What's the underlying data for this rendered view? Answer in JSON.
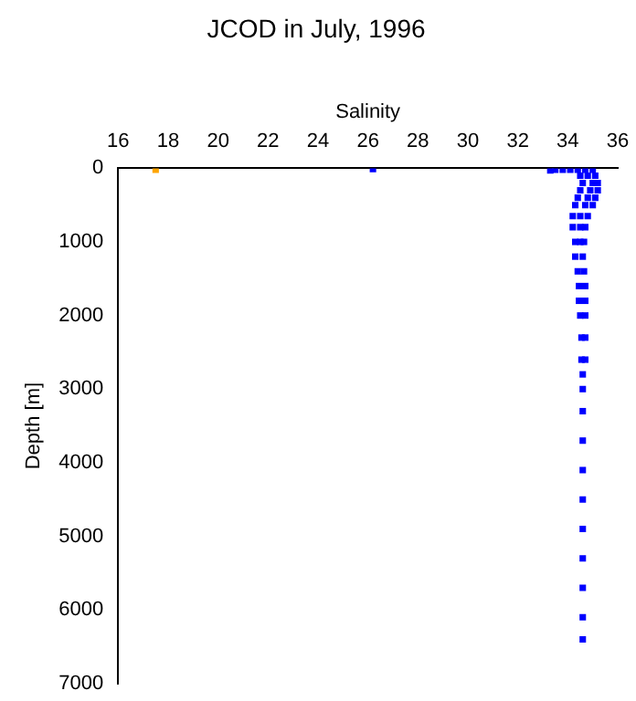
{
  "chart_data": {
    "type": "scatter",
    "title": "JCOD in July, 1996",
    "xlabel": "Salinity",
    "ylabel": "Depth [m]",
    "xlim": [
      16,
      36
    ],
    "xticks": [
      16,
      18,
      20,
      22,
      24,
      26,
      28,
      30,
      32,
      34,
      36
    ],
    "ylim": [
      7000,
      0
    ],
    "yticks": [
      0,
      1000,
      2000,
      3000,
      4000,
      5000,
      6000,
      7000
    ],
    "grid": false,
    "legend": false,
    "marker": "square",
    "series": [
      {
        "color": "#0000ff",
        "x": [
          26.2,
          33.3,
          33.5,
          33.8,
          34.1,
          34.4,
          34.7,
          35.0,
          34.5,
          34.8,
          35.1,
          34.6,
          35.0,
          35.2,
          34.5,
          34.9,
          35.2,
          34.4,
          34.8,
          35.1,
          34.3,
          34.7,
          35.0,
          34.2,
          34.5,
          34.8,
          34.2,
          34.5,
          34.7,
          34.3,
          34.5,
          34.65,
          34.3,
          34.6,
          34.4,
          34.65,
          34.45,
          34.7,
          34.45,
          34.7,
          34.5,
          34.7,
          34.55,
          34.7,
          34.55,
          34.7,
          34.6,
          34.6,
          34.6,
          34.6,
          34.6,
          34.6,
          34.6,
          34.6,
          34.6,
          34.6,
          34.6
        ],
        "values": [
          10,
          30,
          20,
          20,
          20,
          20,
          20,
          20,
          100,
          100,
          100,
          200,
          200,
          200,
          300,
          300,
          300,
          400,
          400,
          400,
          500,
          500,
          500,
          650,
          650,
          650,
          800,
          800,
          800,
          1000,
          1000,
          1000,
          1200,
          1200,
          1400,
          1400,
          1600,
          1600,
          1800,
          1800,
          2000,
          2000,
          2300,
          2300,
          2600,
          2600,
          2800,
          3000,
          3300,
          3700,
          4100,
          4500,
          4900,
          5300,
          5700,
          6100,
          6400
        ]
      },
      {
        "color": "#ffa500",
        "x": [
          17.5
        ],
        "values": [
          20
        ]
      }
    ]
  }
}
